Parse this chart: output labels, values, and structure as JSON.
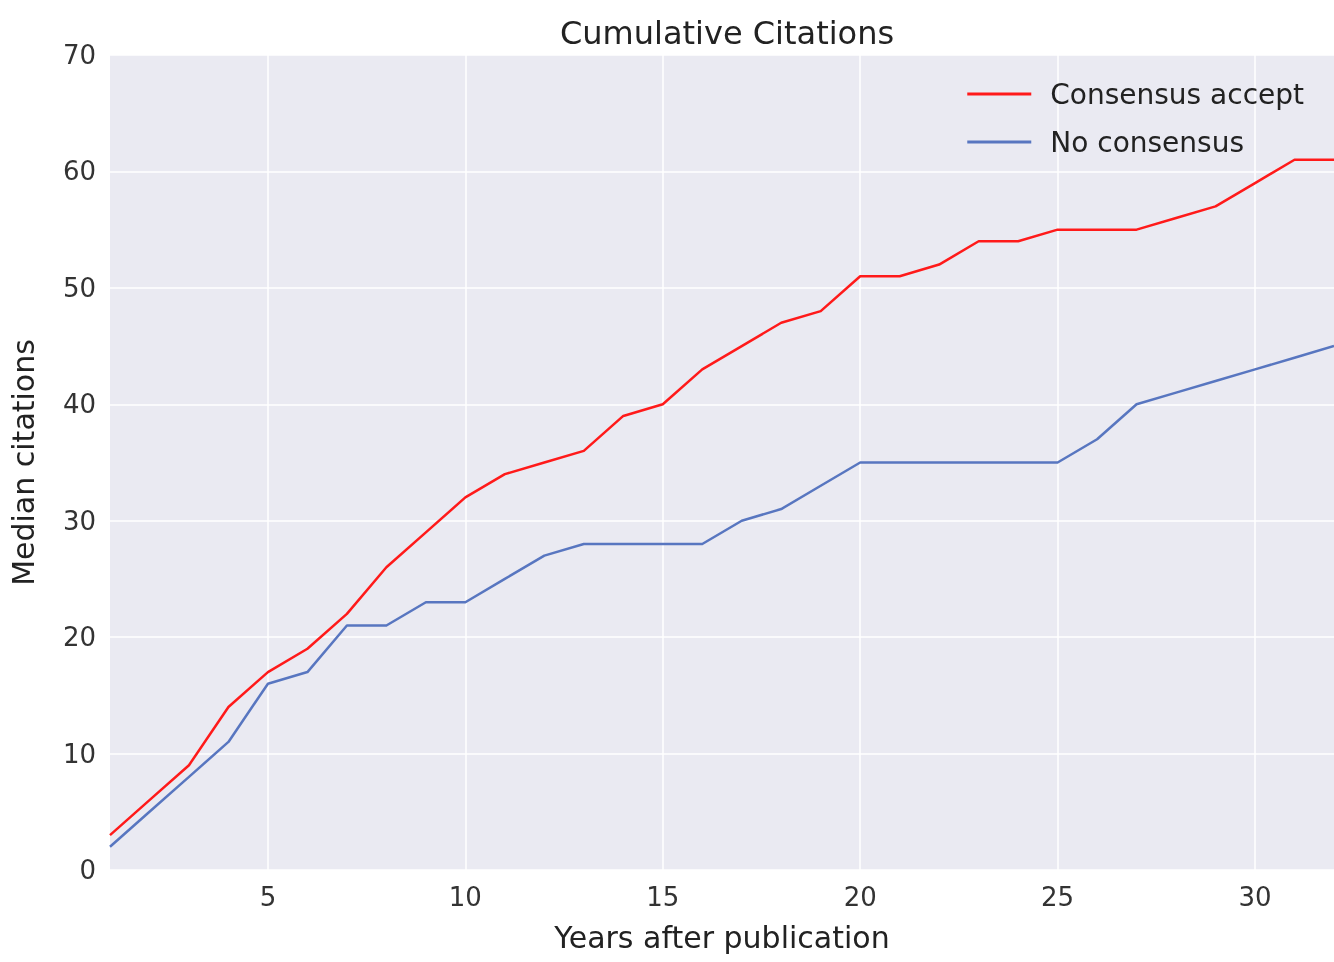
{
  "chart_data": {
    "type": "line",
    "title": "Cumulative Citations",
    "xlabel": "Years after publication",
    "ylabel": "Median citations",
    "x": [
      1,
      2,
      3,
      4,
      5,
      6,
      7,
      8,
      9,
      10,
      11,
      12,
      13,
      14,
      15,
      16,
      17,
      18,
      19,
      20,
      21,
      22,
      23,
      24,
      25,
      26,
      27,
      28,
      29,
      30,
      31,
      32
    ],
    "series": [
      {
        "name": "Consensus accept",
        "color": "#ff1a1a",
        "values": [
          3,
          6,
          9,
          14,
          17,
          19,
          22,
          26,
          29,
          32,
          34,
          35,
          36,
          39,
          40,
          43,
          45,
          47,
          48,
          51,
          51,
          52,
          54,
          54,
          55,
          55,
          55,
          56,
          57,
          59,
          61,
          61
        ]
      },
      {
        "name": "No consensus",
        "color": "#5876c0",
        "values": [
          2,
          5,
          8,
          11,
          16,
          17,
          21,
          21,
          23,
          23,
          25,
          27,
          28,
          28,
          28,
          28,
          30,
          31,
          33,
          35,
          35,
          35,
          35,
          35,
          35,
          37,
          40,
          41,
          42,
          43,
          44,
          45
        ]
      }
    ],
    "xlim": [
      1,
      32
    ],
    "xticks": [
      5,
      10,
      15,
      20,
      25,
      30
    ],
    "ylim": [
      0,
      70
    ],
    "yticks": [
      0,
      10,
      20,
      30,
      40,
      50,
      60,
      70
    ],
    "grid": true,
    "legend": "top right",
    "marker": "none",
    "line_style": "solid"
  }
}
